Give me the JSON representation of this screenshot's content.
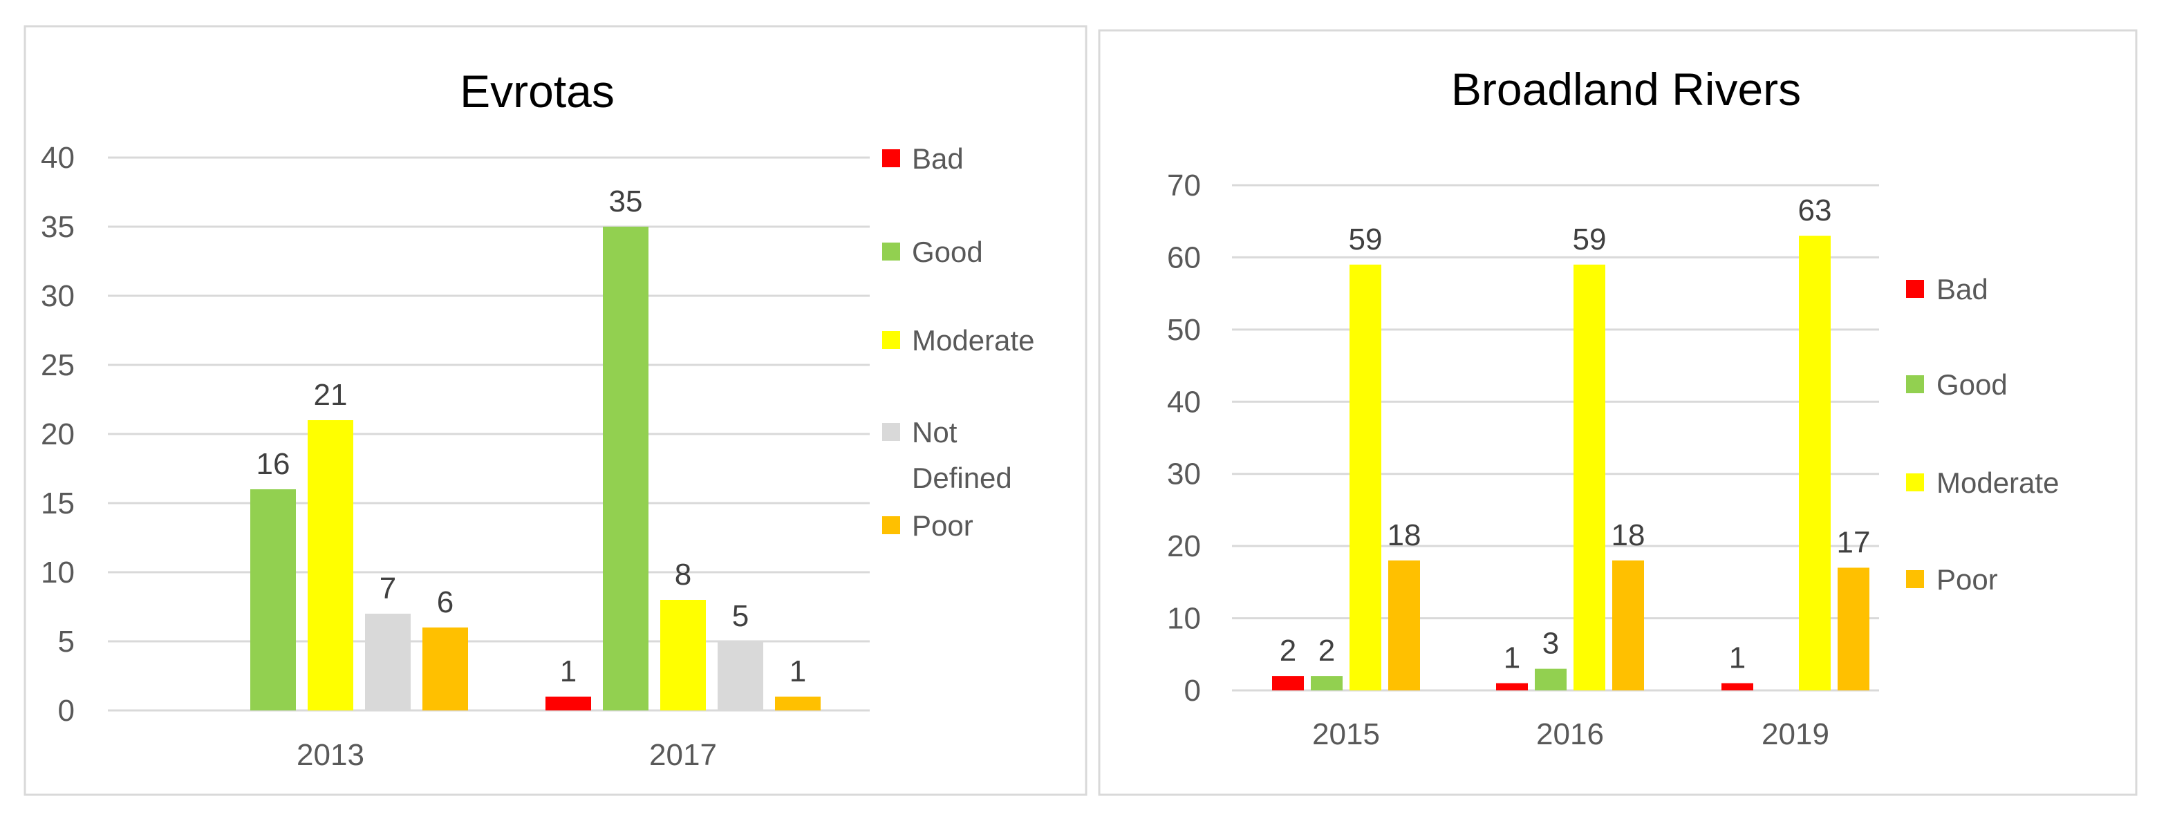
{
  "chart_data": [
    {
      "type": "bar",
      "title": "Evrotas",
      "xlabel": "",
      "ylabel": "",
      "ylim": [
        0,
        40
      ],
      "yticks": [
        0,
        5,
        10,
        15,
        20,
        25,
        30,
        35,
        40
      ],
      "grid": true,
      "legend_position": "right",
      "categories": [
        "2013",
        "2017"
      ],
      "series": [
        {
          "name": "Bad",
          "color": "#FF0000",
          "values": [
            null,
            1
          ]
        },
        {
          "name": "Good",
          "color": "#92D050",
          "values": [
            16,
            35
          ]
        },
        {
          "name": "Moderate",
          "color": "#FFFF00",
          "values": [
            21,
            8
          ]
        },
        {
          "name": "Not Defined",
          "color": "#D9D9D9",
          "values": [
            7,
            5
          ]
        },
        {
          "name": "Poor",
          "color": "#FFC000",
          "values": [
            6,
            1
          ]
        }
      ]
    },
    {
      "type": "bar",
      "title": "Broadland Rivers",
      "xlabel": "",
      "ylabel": "",
      "ylim": [
        0,
        70
      ],
      "yticks": [
        0,
        10,
        20,
        30,
        40,
        50,
        60,
        70
      ],
      "grid": true,
      "legend_position": "right",
      "categories": [
        "2015",
        "2016",
        "2019"
      ],
      "series": [
        {
          "name": "Bad",
          "color": "#FF0000",
          "values": [
            2,
            1,
            1
          ]
        },
        {
          "name": "Good",
          "color": "#92D050",
          "values": [
            2,
            3,
            null
          ]
        },
        {
          "name": "Moderate",
          "color": "#FFFF00",
          "values": [
            59,
            59,
            63
          ]
        },
        {
          "name": "Poor",
          "color": "#FFC000",
          "values": [
            18,
            18,
            17
          ]
        }
      ]
    }
  ]
}
